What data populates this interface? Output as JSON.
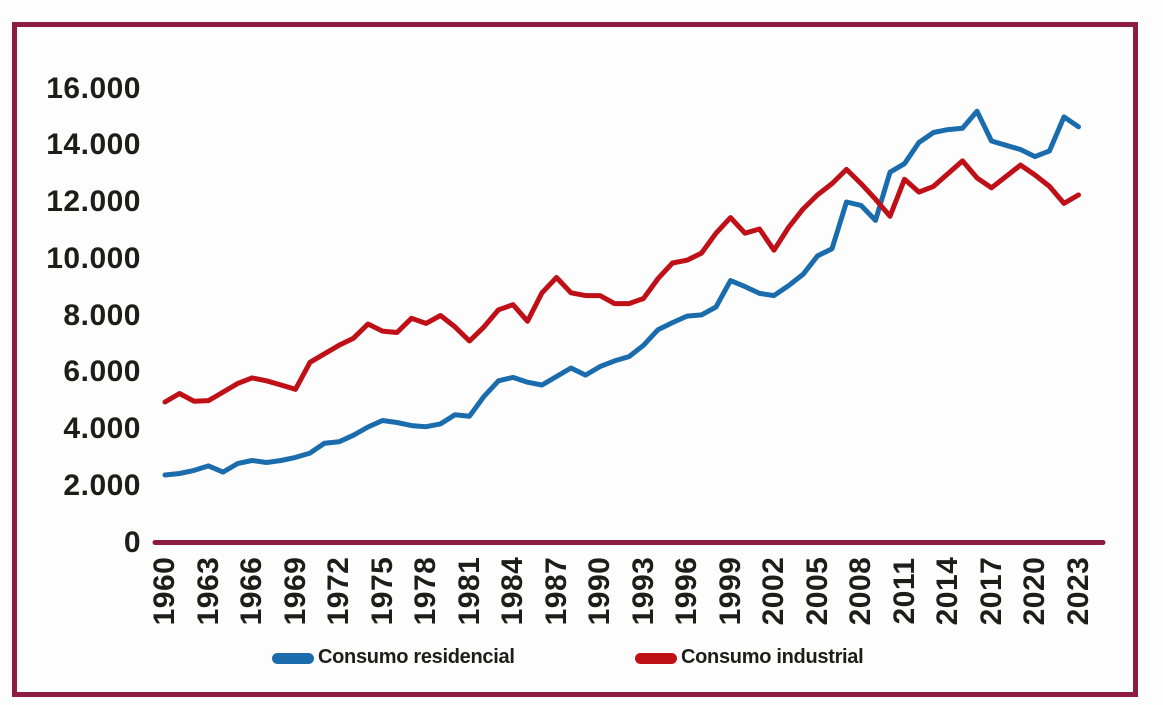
{
  "colors": {
    "frame": "#8e1b40",
    "axis_line": "#8e1b40",
    "text": "#1d1d1b",
    "residential_blue": "#1b6cad",
    "industrial_red": "#bf0f17",
    "background": "#fdfdfd"
  },
  "legend": {
    "residential_label": "Consumo residencial",
    "industrial_label": "Consumo industrial"
  },
  "chart_data": {
    "type": "line",
    "title": "",
    "xlabel": "",
    "ylabel": "",
    "ylim": [
      0,
      16000
    ],
    "ytick_step": 2000,
    "grid": false,
    "legend_position": "bottom",
    "y_ticks": [
      {
        "value": 0,
        "label": "0"
      },
      {
        "value": 2000,
        "label": "2.000"
      },
      {
        "value": 4000,
        "label": "4.000"
      },
      {
        "value": 6000,
        "label": "6.000"
      },
      {
        "value": 8000,
        "label": "8.000"
      },
      {
        "value": 10000,
        "label": "10.000"
      },
      {
        "value": 12000,
        "label": "12.000"
      },
      {
        "value": 14000,
        "label": "14.000"
      },
      {
        "value": 16000,
        "label": "16.000"
      }
    ],
    "x_tick_labels": [
      "1960",
      "1963",
      "1966",
      "1969",
      "1972",
      "1975",
      "1978",
      "1981",
      "1984",
      "1987",
      "1990",
      "1993",
      "1996",
      "1999",
      "2002",
      "2005",
      "2008",
      "2011",
      "2014",
      "2017",
      "2020",
      "2023"
    ],
    "x": [
      1960,
      1961,
      1962,
      1963,
      1964,
      1965,
      1966,
      1967,
      1968,
      1969,
      1970,
      1971,
      1972,
      1973,
      1974,
      1975,
      1976,
      1977,
      1978,
      1979,
      1980,
      1981,
      1982,
      1983,
      1984,
      1985,
      1986,
      1987,
      1988,
      1989,
      1990,
      1991,
      1992,
      1993,
      1994,
      1995,
      1996,
      1997,
      1998,
      1999,
      2000,
      2001,
      2002,
      2003,
      2004,
      2005,
      2006,
      2007,
      2008,
      2009,
      2010,
      2011,
      2012,
      2013,
      2014,
      2015,
      2016,
      2017,
      2018,
      2019,
      2020,
      2021,
      2022,
      2023
    ],
    "series": [
      {
        "name": "Consumo residencial",
        "color": "#1b6cad",
        "values": [
          2380,
          2430,
          2540,
          2700,
          2480,
          2780,
          2890,
          2820,
          2890,
          3000,
          3150,
          3500,
          3550,
          3780,
          4070,
          4300,
          4230,
          4120,
          4080,
          4180,
          4500,
          4450,
          5150,
          5700,
          5820,
          5650,
          5550,
          5850,
          6150,
          5900,
          6200,
          6400,
          6550,
          6950,
          7500,
          7750,
          7980,
          8020,
          8300,
          9230,
          9020,
          8780,
          8700,
          9050,
          9450,
          10100,
          10350,
          12000,
          11880,
          11350,
          13050,
          13350,
          14100,
          14450,
          14550,
          14600,
          15200,
          14150,
          14000,
          13850,
          13600,
          13800,
          15000,
          14650
        ]
      },
      {
        "name": "Consumo industrial",
        "color": "#bf0f17",
        "values": [
          4950,
          5250,
          4980,
          5000,
          5300,
          5600,
          5800,
          5700,
          5550,
          5400,
          6350,
          6650,
          6950,
          7200,
          7700,
          7450,
          7400,
          7900,
          7720,
          8000,
          7600,
          7100,
          7600,
          8200,
          8380,
          7800,
          8800,
          9340,
          8800,
          8700,
          8700,
          8420,
          8420,
          8600,
          9300,
          9850,
          9950,
          10200,
          10900,
          11450,
          10900,
          11050,
          10300,
          11100,
          11750,
          12250,
          12650,
          13150,
          12650,
          12100,
          11500,
          12800,
          12350,
          12550,
          13000,
          13450,
          12850,
          12500,
          12900,
          13300,
          12950,
          12550,
          11950,
          12250
        ]
      }
    ]
  }
}
